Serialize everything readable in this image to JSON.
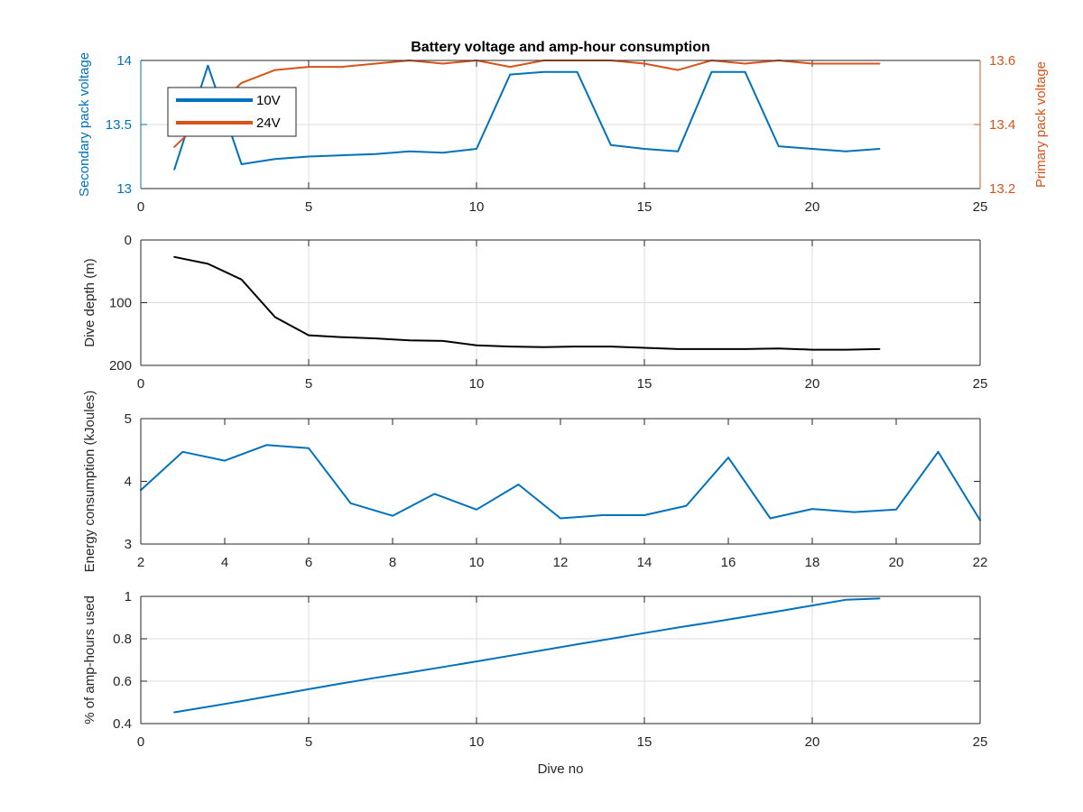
{
  "colors": {
    "blue": "#0072bd",
    "orange": "#d95319",
    "black": "#000000",
    "axis_text": "#262626",
    "grid": "#dcdcdc"
  },
  "chart_data": [
    {
      "type": "line",
      "title": "Battery voltage and amp-hour consumption",
      "ylabel": "Secondary pack voltage",
      "ylabel_right": "Primary pack voltage",
      "xlim": [
        0,
        25
      ],
      "ylim": [
        13,
        14
      ],
      "ylim_right": [
        13.2,
        13.6
      ],
      "xticks": [
        0,
        5,
        10,
        15,
        20,
        25
      ],
      "yticks": [
        13,
        13.5,
        14
      ],
      "yticks_right": [
        13.2,
        13.4,
        13.6
      ],
      "grid": true,
      "legend": "top-left",
      "x": [
        1,
        2,
        3,
        4,
        5,
        6,
        7,
        8,
        9,
        10,
        11,
        12,
        13,
        14,
        15,
        16,
        17,
        18,
        19,
        20,
        21,
        22
      ],
      "series": [
        {
          "name": "10V",
          "axis": "left",
          "values": [
            13.15,
            13.96,
            13.19,
            13.23,
            13.25,
            13.26,
            13.27,
            13.29,
            13.28,
            13.31,
            13.89,
            13.91,
            13.91,
            13.34,
            13.31,
            13.29,
            13.91,
            13.91,
            13.33,
            13.31,
            13.29,
            13.31
          ]
        },
        {
          "name": "24V",
          "axis": "right",
          "values": [
            13.33,
            13.43,
            13.53,
            13.57,
            13.58,
            13.58,
            13.59,
            13.6,
            13.59,
            13.6,
            13.58,
            13.6,
            13.6,
            13.6,
            13.59,
            13.57,
            13.6,
            13.59,
            13.6,
            13.59,
            13.59,
            13.59
          ]
        }
      ]
    },
    {
      "type": "line",
      "ylabel": "Dive depth (m)",
      "xlim": [
        0,
        25
      ],
      "ylim": [
        0,
        200
      ],
      "y_reversed": true,
      "xticks": [
        0,
        5,
        10,
        15,
        20,
        25
      ],
      "yticks": [
        0,
        100,
        200
      ],
      "grid": true,
      "x": [
        1,
        2,
        3,
        4,
        5,
        6,
        7,
        8,
        9,
        10,
        11,
        12,
        13,
        14,
        15,
        16,
        17,
        18,
        19,
        20,
        21,
        22
      ],
      "series": [
        {
          "values": [
            27,
            38,
            63,
            123,
            152,
            155,
            157,
            160,
            161,
            168,
            170,
            171,
            170,
            170,
            172,
            174,
            174,
            174,
            173,
            175,
            175,
            174
          ]
        }
      ]
    },
    {
      "type": "line",
      "ylabel": "Energy consumption (kJoules)",
      "xlim": [
        2,
        22
      ],
      "ylim": [
        3,
        5
      ],
      "xticks": [
        2,
        4,
        6,
        8,
        10,
        12,
        14,
        16,
        18,
        20,
        22
      ],
      "yticks": [
        3,
        4,
        5
      ],
      "grid": false,
      "x": [
        2,
        3,
        4,
        5,
        6,
        7,
        8,
        9,
        10,
        11,
        12,
        13,
        14,
        15,
        16,
        17,
        18,
        19,
        20,
        21,
        22
      ],
      "series": [
        {
          "values": [
            3.86,
            4.47,
            4.33,
            4.58,
            4.53,
            3.65,
            3.45,
            3.8,
            3.55,
            3.95,
            3.41,
            3.46,
            3.46,
            3.61,
            4.38,
            3.41,
            3.56,
            3.51,
            3.55,
            4.47,
            3.38
          ]
        }
      ]
    },
    {
      "type": "line",
      "ylabel": "% of amp-hours used",
      "xlabel": "Dive no",
      "xlim": [
        0,
        25
      ],
      "ylim": [
        0.4,
        1
      ],
      "xticks": [
        0,
        5,
        10,
        15,
        20,
        25
      ],
      "yticks": [
        0.4,
        0.6,
        0.8,
        1
      ],
      "grid": true,
      "x": [
        1,
        2,
        3,
        4,
        5,
        6,
        7,
        8,
        9,
        10,
        11,
        12,
        13,
        14,
        15,
        16,
        17,
        18,
        19,
        20,
        21,
        22
      ],
      "series": [
        {
          "values": [
            0.453,
            0.479,
            0.506,
            0.534,
            0.562,
            0.59,
            0.616,
            0.641,
            0.667,
            0.693,
            0.72,
            0.747,
            0.774,
            0.8,
            0.827,
            0.853,
            0.878,
            0.904,
            0.93,
            0.957,
            0.984,
            0.99
          ]
        }
      ]
    }
  ]
}
